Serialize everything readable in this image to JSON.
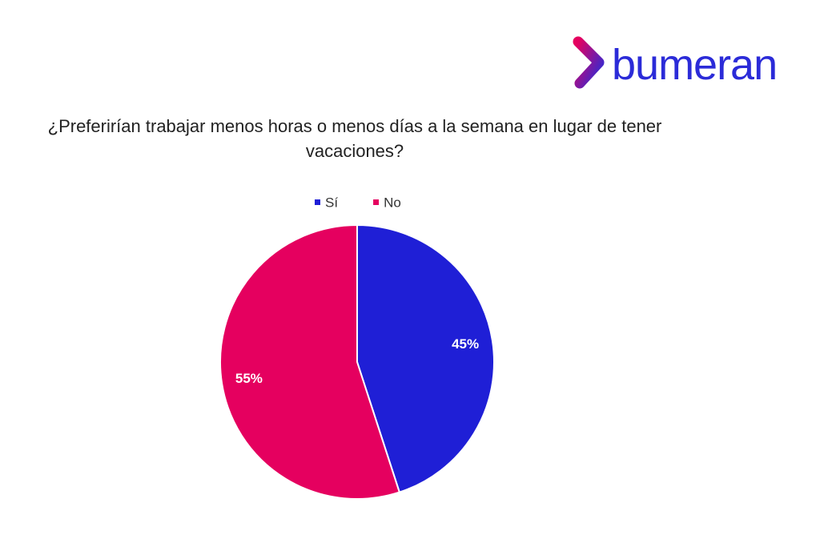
{
  "logo": "bumeran",
  "chart_data": {
    "type": "pie",
    "title": "¿Preferirían trabajar menos horas o menos días a la semana en lugar de tener vacaciones?",
    "categories": [
      "Sí",
      "No"
    ],
    "values": [
      45,
      55
    ],
    "value_labels": [
      "45%",
      "55%"
    ],
    "colors": [
      "#1f1fd6",
      "#e5005f"
    ],
    "legend": "top"
  }
}
